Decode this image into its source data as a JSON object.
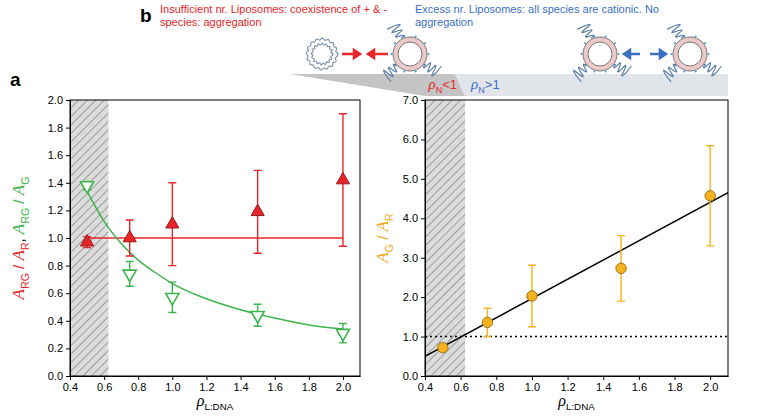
{
  "chart_data": [
    {
      "panel_label": "a",
      "type": "scatter",
      "x_label": [
        {
          "text": "ρ",
          "sub": "L:DNA",
          "color": "#000000"
        }
      ],
      "y_label": [
        {
          "text": "A",
          "sub": "RG",
          "color": "#e8262a"
        },
        {
          "text": " / ",
          "color": "#e8262a"
        },
        {
          "text": "A",
          "sub": "R",
          "color": "#e8262a"
        },
        {
          "text": ", ",
          "color": "#000000"
        },
        {
          "text": "A",
          "sub": "RG",
          "color": "#3cb44b"
        },
        {
          "text": " / ",
          "color": "#3cb44b"
        },
        {
          "text": "A",
          "sub": "G",
          "color": "#3cb44b"
        }
      ],
      "x": [
        0.5,
        0.75,
        1.0,
        1.5,
        2.0
      ],
      "xlim": [
        0.4,
        2.1
      ],
      "xticks": [
        0.4,
        0.6,
        0.8,
        {
          "value": 1,
          "label": "1.0"
        },
        1.2,
        1.4,
        1.6,
        1.8,
        {
          "value": 2,
          "label": "2.0"
        }
      ],
      "ylim": [
        0,
        2
      ],
      "yticks": [
        {
          "value": 0,
          "label": "0.0"
        },
        0.2,
        0.4,
        0.6,
        0.8,
        {
          "value": 1,
          "label": "1.0"
        },
        1.2,
        1.4,
        1.6,
        1.8,
        {
          "value": 2,
          "label": "2.0"
        }
      ],
      "grid": false,
      "shaded_x": [
        0.4,
        0.625
      ],
      "series": [
        {
          "type": "line",
          "color": "#e8262a",
          "line_style": "solid",
          "x": [
            0.5,
            2.0
          ],
          "values": [
            1,
            1
          ]
        },
        {
          "type": "line",
          "color": "#3cb44b",
          "line_style": "solid",
          "x": [
            0.5,
            0.6,
            0.7,
            0.8,
            0.9,
            1.0,
            1.2,
            1.4,
            1.6,
            1.8,
            2.0
          ],
          "values": [
            1.34,
            1.12,
            0.96,
            0.84,
            0.75,
            0.67,
            0.56,
            0.48,
            0.42,
            0.37,
            0.34
          ]
        },
        {
          "type": "scatter",
          "marker": "triangle",
          "color": "#e8262a",
          "values": [
            0.97,
            1.0,
            1.1,
            1.19,
            1.42
          ],
          "errors": [
            0.04,
            0.13,
            0.3,
            0.3,
            0.48
          ]
        },
        {
          "type": "scatter",
          "marker": "triangle-down-open",
          "color": "#3cb44b",
          "values": [
            1.38,
            0.74,
            0.57,
            0.44,
            0.31
          ],
          "errors": [
            0.03,
            0.09,
            0.11,
            0.08,
            0.07
          ]
        }
      ]
    },
    {
      "panel_label": "b",
      "type": "scatter",
      "x_label": [
        {
          "text": "ρ",
          "sub": "L:DNA",
          "color": "#000000"
        }
      ],
      "y_label": [
        {
          "text": "A",
          "sub": "G",
          "color": "#f0a91c"
        },
        {
          "text": " / ",
          "color": "#f0a91c"
        },
        {
          "text": "A",
          "sub": "R",
          "color": "#f0a91c"
        }
      ],
      "x": [
        0.5,
        0.75,
        1.0,
        1.5,
        2.0
      ],
      "xlim": [
        0.4,
        2.1
      ],
      "xticks": [
        0.4,
        0.6,
        0.8,
        {
          "value": 1,
          "label": "1.0"
        },
        1.2,
        1.4,
        1.6,
        1.8,
        {
          "value": 2,
          "label": "2.0"
        }
      ],
      "ylim": [
        0,
        7
      ],
      "yticks": [
        {
          "value": 0,
          "label": "0.0"
        },
        {
          "value": 1,
          "label": "1.0"
        },
        {
          "value": 2,
          "label": "2.0"
        },
        {
          "value": 3,
          "label": "3.0"
        },
        {
          "value": 4,
          "label": "4.0"
        },
        {
          "value": 5,
          "label": "5.0"
        },
        {
          "value": 6,
          "label": "6.0"
        },
        {
          "value": 7,
          "label": "7.0"
        }
      ],
      "grid": false,
      "shaded_x": [
        0.4,
        0.625
      ],
      "series": [
        {
          "type": "line",
          "color": "#000000",
          "line_style": "dotted",
          "x": [
            0.4,
            2.1
          ],
          "values": [
            1,
            1
          ]
        },
        {
          "type": "line",
          "color": "#000000",
          "line_style": "solid",
          "x": [
            0.4,
            2.1
          ],
          "values": [
            0.5,
            4.65
          ]
        },
        {
          "type": "scatter",
          "marker": "circle",
          "color": "#f5b21e",
          "values": [
            0.72,
            1.36,
            2.03,
            2.73,
            4.57
          ],
          "errors": [
            0.08,
            0.36,
            0.78,
            0.83,
            1.27
          ]
        }
      ],
      "annotations": [
        {
          "text": "Insufficient nr. Liposomes: coexistence of + & - species: aggregation",
          "color": "#e8262a"
        },
        {
          "text": "Excess nr. Liposomes: all species are cationic. No aggregation",
          "color": "#3a6fc4"
        }
      ],
      "regime_labels": [
        [
          {
            "text": "ρ",
            "sub": "N",
            "color": "#e8262a"
          },
          {
            "text": "<1",
            "color": "#e8262a"
          }
        ],
        [
          {
            "text": "ρ",
            "sub": "N",
            "color": "#3a6fc4"
          },
          {
            "text": ">1",
            "color": "#3a6fc4"
          }
        ]
      ]
    }
  ]
}
